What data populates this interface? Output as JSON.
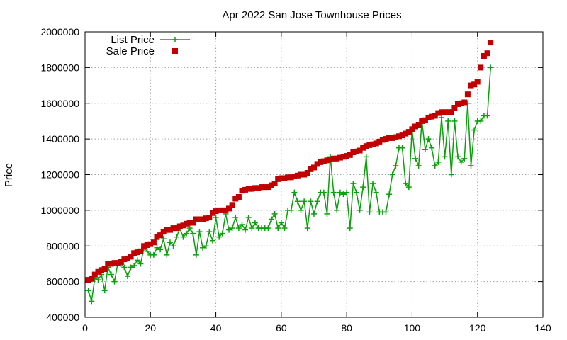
{
  "chart_data": {
    "type": "scatter",
    "title": "Apr 2022 San Jose Townhouse Prices",
    "xlabel": "",
    "ylabel": "Price",
    "xlim": [
      0,
      140
    ],
    "ylim": [
      400000,
      2000000
    ],
    "xticks": [
      "0",
      "20",
      "40",
      "60",
      "80",
      "100",
      "120",
      "140"
    ],
    "yticks": [
      "400000",
      "600000",
      "800000",
      "1000000",
      "1200000",
      "1400000",
      "1600000",
      "1800000",
      "2000000"
    ],
    "grid": true,
    "legend_position": "top-left",
    "series": [
      {
        "name": "List Price",
        "style": "line-points",
        "color": "#0aa00a",
        "x": [
          1,
          2,
          3,
          4,
          5,
          6,
          7,
          8,
          9,
          10,
          11,
          12,
          13,
          14,
          15,
          16,
          17,
          18,
          19,
          20,
          21,
          22,
          23,
          24,
          25,
          26,
          27,
          28,
          29,
          30,
          31,
          32,
          33,
          34,
          35,
          36,
          37,
          38,
          39,
          40,
          41,
          42,
          43,
          44,
          45,
          46,
          47,
          48,
          49,
          50,
          51,
          52,
          53,
          54,
          55,
          56,
          57,
          58,
          59,
          60,
          61,
          62,
          63,
          64,
          65,
          66,
          67,
          68,
          69,
          70,
          71,
          72,
          73,
          74,
          75,
          76,
          77,
          78,
          79,
          80,
          81,
          82,
          83,
          84,
          85,
          86,
          87,
          88,
          89,
          90,
          91,
          92,
          93,
          94,
          95,
          96,
          97,
          98,
          99,
          100,
          101,
          102,
          103,
          104,
          105,
          106,
          107,
          108,
          109,
          110,
          111,
          112,
          113,
          114,
          115,
          116,
          117,
          118,
          119,
          120,
          121,
          122,
          123,
          124
        ],
        "values": [
          550000,
          490000,
          620000,
          610000,
          640000,
          550000,
          680000,
          640000,
          600000,
          700000,
          700000,
          680000,
          630000,
          680000,
          690000,
          720000,
          700000,
          790000,
          770000,
          750000,
          750000,
          790000,
          780000,
          840000,
          750000,
          820000,
          800000,
          850000,
          900000,
          850000,
          870000,
          900000,
          870000,
          750000,
          880000,
          790000,
          800000,
          880000,
          830000,
          960000,
          850000,
          870000,
          980000,
          890000,
          900000,
          960000,
          900000,
          920000,
          890000,
          960000,
          900000,
          930000,
          900000,
          900000,
          900000,
          900000,
          950000,
          980000,
          900000,
          930000,
          900000,
          1000000,
          1000000,
          1100000,
          1050000,
          1000000,
          1050000,
          900000,
          1050000,
          980000,
          1050000,
          1100000,
          1100000,
          980000,
          1300000,
          1100000,
          1000000,
          1100000,
          1090000,
          1100000,
          900000,
          1150000,
          1100000,
          1000000,
          1130000,
          1300000,
          990000,
          1150000,
          1100000,
          990000,
          990000,
          990000,
          1090000,
          1200000,
          1250000,
          1350000,
          1350000,
          1150000,
          1130000,
          1450000,
          1290000,
          1250000,
          1500000,
          1340000,
          1400000,
          1350000,
          1250000,
          1270000,
          1520000,
          1300000,
          1500000,
          1200000,
          1500000,
          1300000,
          1270000,
          1290000,
          1600000,
          1250000,
          1450000,
          1500000,
          1500000,
          1530000,
          1530000,
          1800000
        ]
      },
      {
        "name": "Sale Price",
        "style": "points",
        "color": "#c00000",
        "x": [
          1,
          2,
          3,
          4,
          5,
          6,
          7,
          8,
          9,
          10,
          11,
          12,
          13,
          14,
          15,
          16,
          17,
          18,
          19,
          20,
          21,
          22,
          23,
          24,
          25,
          26,
          27,
          28,
          29,
          30,
          31,
          32,
          33,
          34,
          35,
          36,
          37,
          38,
          39,
          40,
          41,
          42,
          43,
          44,
          45,
          46,
          47,
          48,
          49,
          50,
          51,
          52,
          53,
          54,
          55,
          56,
          57,
          58,
          59,
          60,
          61,
          62,
          63,
          64,
          65,
          66,
          67,
          68,
          69,
          70,
          71,
          72,
          73,
          74,
          75,
          76,
          77,
          78,
          79,
          80,
          81,
          82,
          83,
          84,
          85,
          86,
          87,
          88,
          89,
          90,
          91,
          92,
          93,
          94,
          95,
          96,
          97,
          98,
          99,
          100,
          101,
          102,
          103,
          104,
          105,
          106,
          107,
          108,
          109,
          110,
          111,
          112,
          113,
          114,
          115,
          116,
          117,
          118,
          119,
          120,
          121,
          122,
          123,
          124
        ],
        "values": [
          610000,
          615000,
          640000,
          655000,
          665000,
          670000,
          700000,
          700000,
          705000,
          705000,
          710000,
          725000,
          730000,
          740000,
          760000,
          765000,
          770000,
          800000,
          805000,
          810000,
          820000,
          850000,
          860000,
          880000,
          890000,
          890000,
          900000,
          900000,
          910000,
          915000,
          925000,
          930000,
          930000,
          950000,
          950000,
          950000,
          955000,
          960000,
          985000,
          995000,
          1000000,
          1000000,
          1000000,
          1010000,
          1030000,
          1065000,
          1075000,
          1110000,
          1115000,
          1120000,
          1120000,
          1125000,
          1125000,
          1130000,
          1130000,
          1130000,
          1140000,
          1150000,
          1175000,
          1180000,
          1180000,
          1185000,
          1185000,
          1190000,
          1195000,
          1200000,
          1200000,
          1210000,
          1230000,
          1240000,
          1260000,
          1270000,
          1275000,
          1280000,
          1285000,
          1290000,
          1290000,
          1295000,
          1300000,
          1305000,
          1310000,
          1325000,
          1330000,
          1335000,
          1350000,
          1360000,
          1365000,
          1370000,
          1375000,
          1385000,
          1395000,
          1400000,
          1405000,
          1405000,
          1410000,
          1415000,
          1420000,
          1430000,
          1440000,
          1455000,
          1470000,
          1480000,
          1500000,
          1505000,
          1520000,
          1525000,
          1530000,
          1545000,
          1550000,
          1550000,
          1550000,
          1550000,
          1575000,
          1595000,
          1600000,
          1605000,
          1650000,
          1700000,
          1705000,
          1720000,
          1800000,
          1865000,
          1880000,
          1940000
        ]
      }
    ]
  }
}
